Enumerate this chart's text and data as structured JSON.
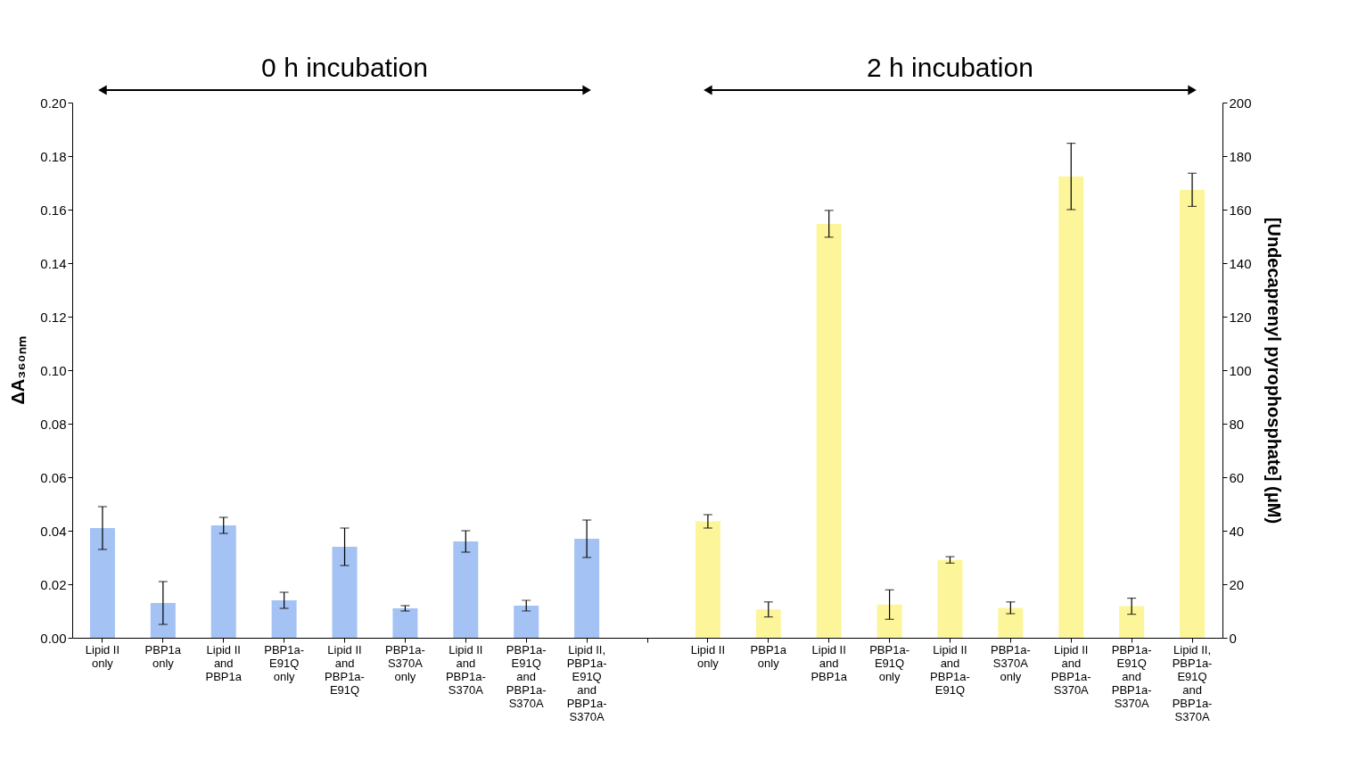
{
  "chart_data": {
    "type": "bar",
    "ylabel": "ΔA₃₆₀ₙₘ",
    "y2label": "[Undecaprenyl pyrophosphate] (μM)",
    "annotations": [
      "0 h incubation",
      "2 h incubation"
    ],
    "categories": [
      "Lipid II\nonly",
      "PBP1a\nonly",
      "Lipid II\nand\nPBP1a",
      "PBP1a-\nE91Q\nonly",
      "Lipid II\nand\nPBP1a-\nE91Q",
      "PBP1a-\nS370A\nonly",
      "Lipid II\nand\nPBP1a-\nS370A",
      "PBP1a-\nE91Q\nand\nPBP1a-\nS370A",
      "Lipid II,\nPBP1a-\nE91Q\nand\nPBP1a-\nS370A",
      null,
      "Lipid II\nonly",
      "PBP1a\nonly",
      "Lipid II\nand\nPBP1a",
      "PBP1a-\nE91Q\nonly",
      "Lipid II\nand\nPBP1a-\nE91Q",
      "PBP1a-\nS370A\nonly",
      "Lipid II\nand\nPBP1a-\nS370A",
      "PBP1a-\nE91Q\nand\nPBP1a-\nS370A",
      "Lipid II,\nPBP1a-\nE91Q\nand\nPBP1a-\nS370A"
    ],
    "series": [
      {
        "color": "#a4c2f4",
        "values": [
          0.041,
          0.013,
          0.042,
          0.014,
          0.034,
          0.011,
          0.036,
          0.012,
          0.037,
          null,
          null,
          null,
          null,
          null,
          null,
          null,
          null,
          null,
          null
        ],
        "errors": [
          0.008,
          0.008,
          0.003,
          0.003,
          0.007,
          0.001,
          0.004,
          0.002,
          0.007,
          null,
          null,
          null,
          null,
          null,
          null,
          null,
          null,
          null,
          null
        ]
      },
      {
        "color": "#fdf59a",
        "axis": "y2",
        "values": [
          null,
          null,
          null,
          null,
          null,
          null,
          null,
          null,
          null,
          null,
          43.5,
          10.6,
          154.7,
          12.4,
          29.1,
          11.2,
          172.4,
          11.8,
          167.4
        ],
        "errors": [
          null,
          null,
          null,
          null,
          null,
          null,
          null,
          null,
          null,
          null,
          2.5,
          2.8,
          5,
          5.5,
          1.2,
          2.2,
          12.4,
          3,
          6.2
        ]
      }
    ],
    "ylim": [
      0,
      0.2
    ],
    "yticks": [
      {
        "value": 0,
        "label": "0.00"
      },
      0.02,
      0.04,
      0.06,
      0.08,
      {
        "value": 0.1,
        "label": "0.10"
      },
      0.12,
      0.14,
      0.16,
      0.18,
      {
        "value": 0.2,
        "label": "0.20"
      }
    ],
    "y2lim": [
      0,
      200
    ],
    "y2ticks": [
      0,
      20,
      40,
      60,
      80,
      100,
      120,
      140,
      160,
      180,
      200
    ],
    "grid": false
  }
}
